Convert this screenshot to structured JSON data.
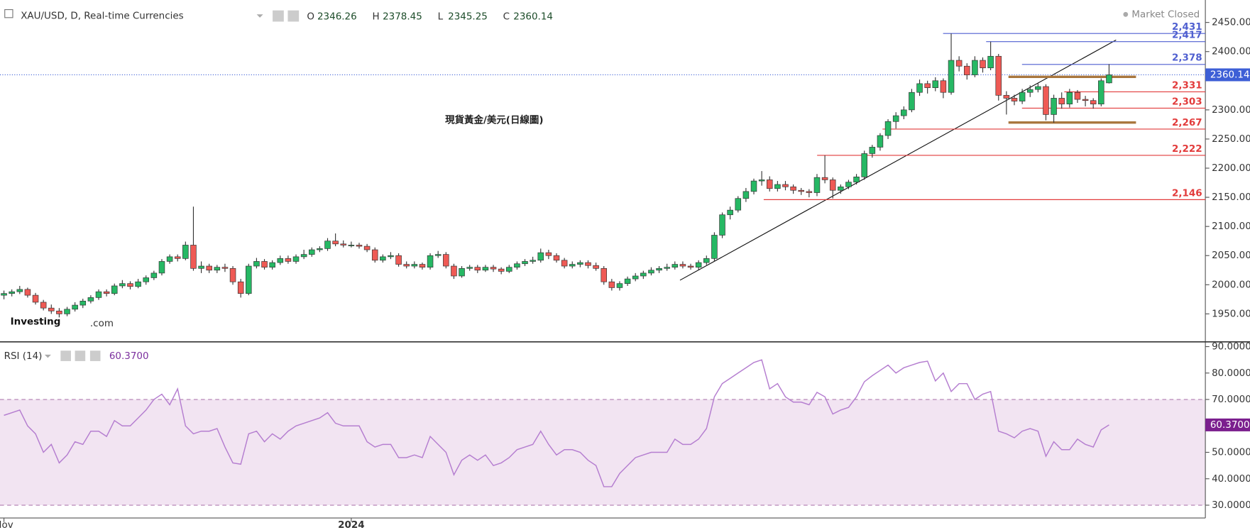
{
  "chart_data": [
    {
      "type": "candlestick",
      "title": "XAU/USD, D, Real-time Currencies",
      "ohlc_labels": [
        "O",
        "H",
        "L",
        "C"
      ],
      "status": "Market Closed",
      "annotation": "現貨黃金/美元(日線圖)",
      "watermark": [
        "Investing",
        ".com"
      ],
      "up_color": "#26b864",
      "down_color": "#ef5a55",
      "price_line_color": "#3d5fd6",
      "xlim": [
        -0.5,
        152.2
      ],
      "xticks": [
        {
          "value": 0,
          "label": "Nov"
        },
        {
          "value": 44,
          "label": "2024"
        }
      ],
      "ylim": [
        1902,
        2488.5
      ],
      "yticks": [
        {
          "value": 1950,
          "label": "1950.00"
        },
        {
          "value": 2000,
          "label": "2000.00"
        },
        {
          "value": 2050,
          "label": "2050.00"
        },
        {
          "value": 2100,
          "label": "2100.00"
        },
        {
          "value": 2150,
          "label": "2150.00"
        },
        {
          "value": 2200,
          "label": "2200.00"
        },
        {
          "value": 2250,
          "label": "2250.00"
        },
        {
          "value": 2300,
          "label": "2300.00"
        },
        {
          "value": 2400,
          "label": "2400.00"
        },
        {
          "value": 2450,
          "label": "2450.00"
        }
      ],
      "levels": [
        {
          "value": 2431,
          "label": "2,431",
          "color": "#4f5fd0"
        },
        {
          "value": 2417,
          "label": "2,417",
          "color": "#4f5fd0"
        },
        {
          "value": 2378,
          "label": "2,378",
          "color": "#4f5fd0"
        },
        {
          "value": 2331,
          "label": "2,331",
          "color": "#e23b3b"
        },
        {
          "value": 2303,
          "label": "2,303",
          "color": "#e23b3b"
        },
        {
          "value": 2267,
          "label": "2,267",
          "color": "#e23b3b"
        },
        {
          "value": 2222,
          "label": "2,222",
          "color": "#e23b3b"
        },
        {
          "value": 2146,
          "label": "2,146",
          "color": "#e23b3b"
        }
      ],
      "candles": [
        [
          1982,
          1990,
          1975,
          1985
        ],
        [
          1985,
          1992,
          1980,
          1988
        ],
        [
          1988,
          1998,
          1984,
          1992
        ],
        [
          1992,
          1995,
          1978,
          1982
        ],
        [
          1982,
          1986,
          1966,
          1970
        ],
        [
          1970,
          1974,
          1956,
          1960
        ],
        [
          1960,
          1966,
          1950,
          1955
        ],
        [
          1955,
          1960,
          1944,
          1950
        ],
        [
          1950,
          1962,
          1946,
          1958
        ],
        [
          1958,
          1970,
          1954,
          1965
        ],
        [
          1965,
          1976,
          1960,
          1972
        ],
        [
          1972,
          1982,
          1968,
          1978
        ],
        [
          1978,
          1992,
          1974,
          1988
        ],
        [
          1988,
          1992,
          1980,
          1985
        ],
        [
          1985,
          2002,
          1982,
          1998
        ],
        [
          1998,
          2008,
          1994,
          2002
        ],
        [
          2002,
          2006,
          1992,
          1997
        ],
        [
          1997,
          2010,
          1994,
          2005
        ],
        [
          2005,
          2016,
          2000,
          2012
        ],
        [
          2012,
          2024,
          2008,
          2020
        ],
        [
          2020,
          2044,
          2016,
          2040
        ],
        [
          2040,
          2052,
          2036,
          2048
        ],
        [
          2048,
          2052,
          2040,
          2045
        ],
        [
          2045,
          2074,
          2042,
          2068
        ],
        [
          2068,
          2134,
          2024,
          2028
        ],
        [
          2028,
          2040,
          2020,
          2032
        ],
        [
          2032,
          2036,
          2020,
          2025
        ],
        [
          2025,
          2034,
          2020,
          2030
        ],
        [
          2030,
          2036,
          2022,
          2028
        ],
        [
          2028,
          2032,
          2000,
          2005
        ],
        [
          2005,
          2010,
          1978,
          1985
        ],
        [
          1985,
          2036,
          1982,
          2032
        ],
        [
          2032,
          2046,
          2028,
          2040
        ],
        [
          2040,
          2044,
          2026,
          2030
        ],
        [
          2030,
          2042,
          2026,
          2038
        ],
        [
          2038,
          2050,
          2034,
          2045
        ],
        [
          2045,
          2050,
          2036,
          2040
        ],
        [
          2040,
          2052,
          2036,
          2048
        ],
        [
          2048,
          2060,
          2044,
          2052
        ],
        [
          2052,
          2064,
          2048,
          2060
        ],
        [
          2060,
          2066,
          2056,
          2062
        ],
        [
          2062,
          2080,
          2058,
          2075
        ],
        [
          2075,
          2088,
          2066,
          2070
        ],
        [
          2070,
          2076,
          2064,
          2068
        ],
        [
          2068,
          2074,
          2064,
          2068
        ],
        [
          2068,
          2072,
          2062,
          2066
        ],
        [
          2066,
          2070,
          2056,
          2060
        ],
        [
          2060,
          2064,
          2038,
          2042
        ],
        [
          2042,
          2052,
          2038,
          2048
        ],
        [
          2048,
          2056,
          2044,
          2050
        ],
        [
          2050,
          2054,
          2031,
          2035
        ],
        [
          2035,
          2040,
          2028,
          2032
        ],
        [
          2032,
          2040,
          2028,
          2035
        ],
        [
          2035,
          2038,
          2026,
          2030
        ],
        [
          2030,
          2054,
          2026,
          2050
        ],
        [
          2050,
          2058,
          2046,
          2052
        ],
        [
          2052,
          2056,
          2028,
          2032
        ],
        [
          2032,
          2036,
          2010,
          2015
        ],
        [
          2015,
          2032,
          2012,
          2028
        ],
        [
          2028,
          2034,
          2024,
          2030
        ],
        [
          2030,
          2034,
          2020,
          2025
        ],
        [
          2025,
          2034,
          2022,
          2030
        ],
        [
          2030,
          2034,
          2022,
          2027
        ],
        [
          2027,
          2030,
          2018,
          2023
        ],
        [
          2023,
          2034,
          2020,
          2030
        ],
        [
          2030,
          2040,
          2026,
          2036
        ],
        [
          2036,
          2044,
          2032,
          2040
        ],
        [
          2040,
          2048,
          2036,
          2042
        ],
        [
          2042,
          2062,
          2038,
          2055
        ],
        [
          2055,
          2060,
          2044,
          2050
        ],
        [
          2050,
          2054,
          2038,
          2042
        ],
        [
          2042,
          2046,
          2028,
          2032
        ],
        [
          2032,
          2040,
          2028,
          2035
        ],
        [
          2035,
          2042,
          2030,
          2038
        ],
        [
          2038,
          2042,
          2028,
          2033
        ],
        [
          2033,
          2038,
          2024,
          2028
        ],
        [
          2028,
          2032,
          2000,
          2005
        ],
        [
          2005,
          2010,
          1990,
          1995
        ],
        [
          1995,
          2006,
          1990,
          2002
        ],
        [
          2002,
          2014,
          1998,
          2010
        ],
        [
          2010,
          2020,
          2006,
          2015
        ],
        [
          2015,
          2024,
          2010,
          2020
        ],
        [
          2020,
          2030,
          2016,
          2025
        ],
        [
          2025,
          2032,
          2020,
          2028
        ],
        [
          2028,
          2036,
          2024,
          2030
        ],
        [
          2030,
          2040,
          2026,
          2035
        ],
        [
          2035,
          2040,
          2028,
          2032
        ],
        [
          2032,
          2036,
          2026,
          2030
        ],
        [
          2030,
          2042,
          2026,
          2038
        ],
        [
          2038,
          2050,
          2034,
          2045
        ],
        [
          2045,
          2090,
          2040,
          2085
        ],
        [
          2085,
          2124,
          2080,
          2120
        ],
        [
          2120,
          2134,
          2112,
          2128
        ],
        [
          2128,
          2152,
          2124,
          2148
        ],
        [
          2148,
          2166,
          2142,
          2160
        ],
        [
          2160,
          2182,
          2155,
          2178
        ],
        [
          2178,
          2195,
          2170,
          2180
        ],
        [
          2180,
          2186,
          2160,
          2165
        ],
        [
          2165,
          2178,
          2160,
          2172
        ],
        [
          2172,
          2178,
          2162,
          2168
        ],
        [
          2168,
          2172,
          2156,
          2162
        ],
        [
          2162,
          2166,
          2154,
          2160
        ],
        [
          2160,
          2164,
          2150,
          2158
        ],
        [
          2158,
          2190,
          2152,
          2184
        ],
        [
          2184,
          2222,
          2174,
          2180
        ],
        [
          2180,
          2184,
          2148,
          2162
        ],
        [
          2162,
          2172,
          2156,
          2168
        ],
        [
          2168,
          2180,
          2164,
          2176
        ],
        [
          2176,
          2190,
          2172,
          2185
        ],
        [
          2185,
          2230,
          2180,
          2225
        ],
        [
          2225,
          2240,
          2218,
          2236
        ],
        [
          2236,
          2260,
          2230,
          2256
        ],
        [
          2256,
          2284,
          2250,
          2280
        ],
        [
          2280,
          2296,
          2268,
          2290
        ],
        [
          2290,
          2306,
          2284,
          2300
        ],
        [
          2300,
          2336,
          2296,
          2330
        ],
        [
          2330,
          2352,
          2324,
          2345
        ],
        [
          2345,
          2350,
          2328,
          2338
        ],
        [
          2338,
          2356,
          2332,
          2350
        ],
        [
          2350,
          2354,
          2320,
          2330
        ],
        [
          2330,
          2431,
          2326,
          2385
        ],
        [
          2385,
          2392,
          2366,
          2375
        ],
        [
          2375,
          2380,
          2352,
          2360
        ],
        [
          2360,
          2392,
          2356,
          2385
        ],
        [
          2385,
          2390,
          2364,
          2372
        ],
        [
          2372,
          2417,
          2368,
          2392
        ],
        [
          2392,
          2396,
          2316,
          2325
        ],
        [
          2325,
          2332,
          2292,
          2320
        ],
        [
          2320,
          2326,
          2308,
          2315
        ],
        [
          2315,
          2336,
          2310,
          2330
        ],
        [
          2330,
          2342,
          2322,
          2335
        ],
        [
          2335,
          2346,
          2330,
          2340
        ],
        [
          2340,
          2344,
          2282,
          2292
        ],
        [
          2292,
          2326,
          2278,
          2320
        ],
        [
          2320,
          2330,
          2302,
          2310
        ],
        [
          2310,
          2336,
          2304,
          2330
        ],
        [
          2330,
          2334,
          2312,
          2318
        ],
        [
          2318,
          2324,
          2306,
          2316
        ],
        [
          2316,
          2320,
          2302,
          2310
        ],
        [
          2310,
          2354,
          2306,
          2350
        ],
        [
          2346.26,
          2378.45,
          2345.25,
          2360.14
        ]
      ]
    },
    {
      "type": "line",
      "title": "RSI (14)",
      "value_label": "60.3700",
      "color": "#b57ed0",
      "band": [
        30,
        70
      ],
      "band_color": "#f2e4f2",
      "xlim": [
        -0.5,
        152.2
      ],
      "ylim": [
        25.15,
        91.8
      ],
      "yticks": [
        {
          "value": 30,
          "label": "30.0000"
        },
        {
          "value": 40,
          "label": "40.0000"
        },
        {
          "value": 50,
          "label": "50.0000"
        },
        {
          "value": 60,
          "label": "60.0000"
        },
        {
          "value": 70,
          "label": "70.0000"
        },
        {
          "value": 80,
          "label": "80.0000"
        },
        {
          "value": 90,
          "label": "90.0000"
        }
      ],
      "values": [
        64,
        65,
        66,
        60,
        57,
        50,
        53,
        46,
        49,
        54,
        53,
        58,
        58,
        56,
        62,
        60,
        60,
        63,
        66,
        70,
        72,
        68,
        74,
        60,
        57,
        58,
        58,
        59,
        52,
        46,
        45.5,
        57,
        58,
        54,
        57,
        55,
        58,
        60,
        61,
        62,
        63,
        65,
        61,
        60,
        60,
        60,
        54,
        52,
        53,
        53,
        48,
        48,
        49,
        48,
        56,
        53,
        50,
        41.5,
        47,
        49,
        47,
        49,
        45,
        46,
        48,
        51,
        52,
        53,
        58,
        53,
        49,
        51,
        51,
        50,
        47,
        45,
        37,
        37,
        42,
        45,
        48,
        49,
        50,
        50,
        50,
        55,
        53,
        53,
        55,
        59,
        71,
        76,
        78,
        80,
        82,
        84,
        85,
        74,
        76,
        71,
        69,
        69,
        68,
        72.7,
        71,
        64.5,
        66,
        67,
        71,
        76.7,
        79,
        81,
        83,
        80,
        82,
        83,
        84,
        84.5,
        77,
        80,
        73,
        76,
        76,
        70,
        72,
        73,
        58,
        57,
        55.5,
        58,
        59,
        58,
        48.5,
        54,
        51,
        51,
        55,
        53,
        52,
        58.5,
        60.37
      ]
    }
  ]
}
